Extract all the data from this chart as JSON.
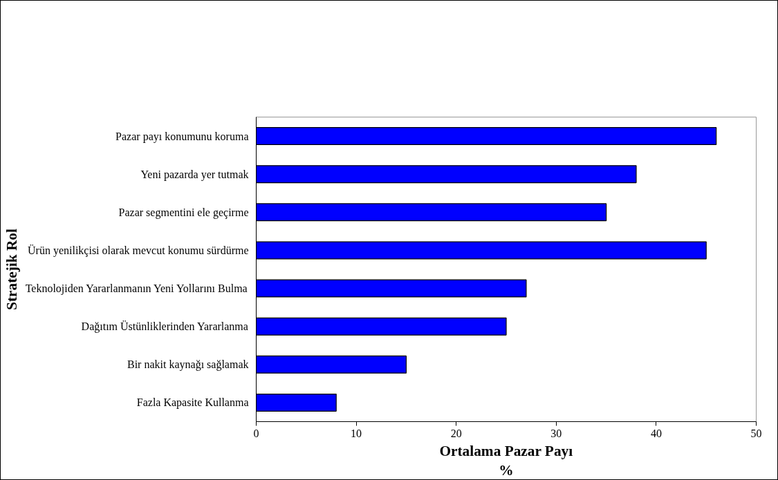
{
  "chart_data": {
    "type": "bar",
    "orientation": "horizontal",
    "categories": [
      "Pazar payı konumunu koruma",
      "Yeni pazarda yer tutmak",
      "Pazar segmentini ele geçirme",
      "Ürün yenilikçisi olarak mevcut konumu sürdürme",
      "Teknolojiden Yararlanmanın Yeni Yollarını Bulma",
      "Dağıtım Üstünliklerinden Yararlanma",
      "Bir nakit kaynağı sağlamak",
      "Fazla Kapasite Kullanma"
    ],
    "values": [
      46,
      38,
      35,
      45,
      27,
      25,
      15,
      8
    ],
    "color": "#0000ff",
    "xlim": [
      0,
      50
    ],
    "xticks": [
      0,
      10,
      20,
      30,
      40,
      50
    ],
    "xlabel": "Ortalama Pazar Payı\n%",
    "ylabel": "Stratejik Rol",
    "grid": false
  }
}
